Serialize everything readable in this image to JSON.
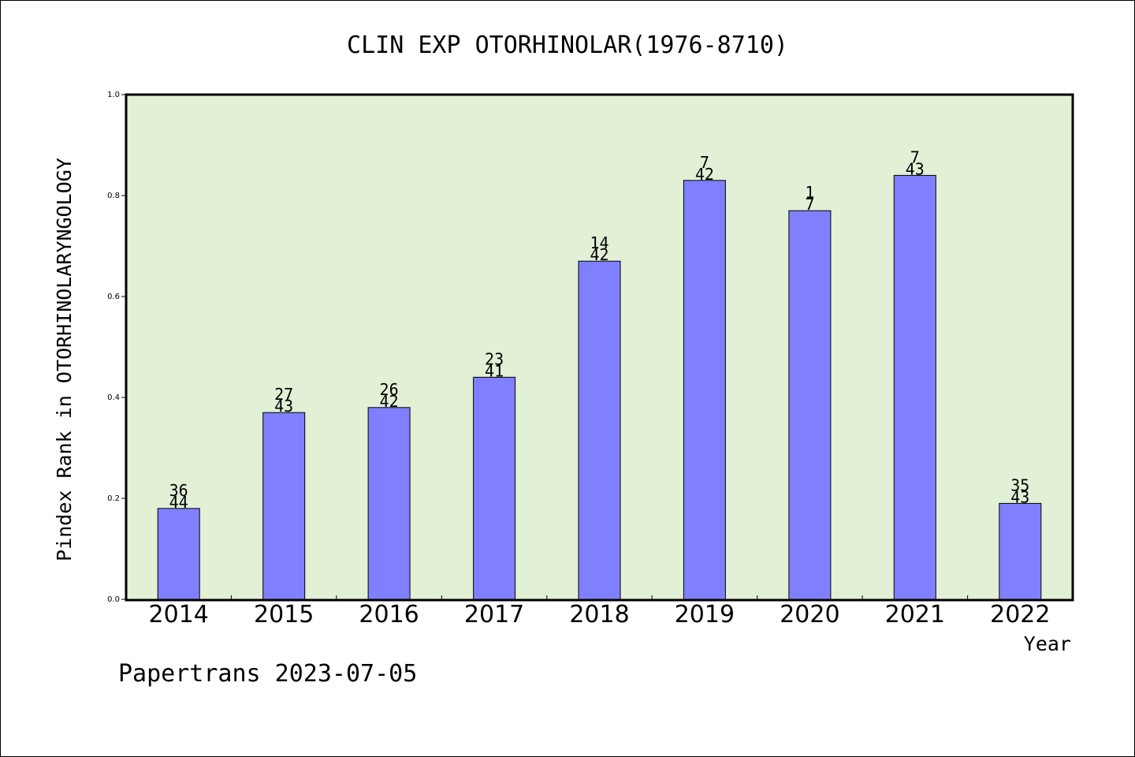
{
  "chart_data": {
    "type": "bar",
    "title": "CLIN EXP OTORHINOLAR(1976-8710)",
    "xlabel": "Year",
    "ylabel": "Pindex Rank in OTORHINOLARYNGOLOGY",
    "categories": [
      "2014",
      "2015",
      "2016",
      "2017",
      "2018",
      "2019",
      "2020",
      "2021",
      "2022"
    ],
    "values": [
      0.18,
      0.37,
      0.38,
      0.44,
      0.67,
      0.83,
      0.77,
      0.84,
      0.19
    ],
    "rank": [
      "36",
      "27",
      "26",
      "23",
      "14",
      "7",
      "1",
      "7",
      "35"
    ],
    "total": [
      "44",
      "43",
      "42",
      "41",
      "42",
      "42",
      "7",
      "43",
      "43"
    ],
    "ylim": [
      0,
      1.0
    ],
    "yticks": [
      "0.0",
      "0.2",
      "0.4",
      "0.6",
      "0.8",
      "1.0"
    ],
    "grid": false,
    "bar_color": "#8080ff",
    "plot_background": "#e2f0d6"
  },
  "footer": {
    "credit": "Papertrans 2023-07-05"
  }
}
